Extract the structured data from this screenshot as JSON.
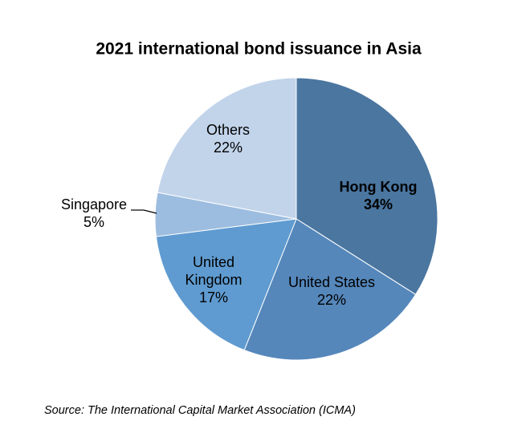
{
  "chart_data": {
    "type": "pie",
    "title": "2021 international bond issuance in Asia",
    "categories": [
      "Hong Kong",
      "United States",
      "United Kingdom",
      "Singapore",
      "Others"
    ],
    "values": [
      34,
      22,
      17,
      5,
      22
    ],
    "value_labels": [
      "34%",
      "22%",
      "17%",
      "5%",
      "22%"
    ],
    "colors": [
      "#4a76a0",
      "#5587bb",
      "#5f9bd0",
      "#9dbde0",
      "#c2d4ea"
    ],
    "source": "Source: The International Capital Market Association (ICMA)"
  }
}
